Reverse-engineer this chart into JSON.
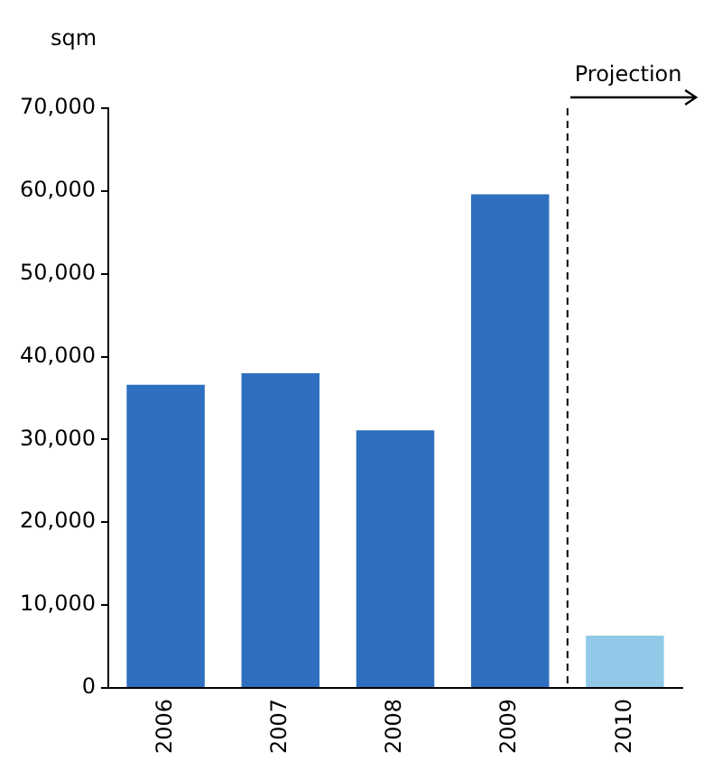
{
  "chart_data": {
    "type": "bar",
    "ylabel": "sqm",
    "categories": [
      "2006",
      "2007",
      "2008",
      "2009",
      "2010"
    ],
    "values": [
      36600,
      38000,
      31100,
      59600,
      6300
    ],
    "colors": [
      "#2e6fbf",
      "#2e6fbf",
      "#2e6fbf",
      "#2e6fbf",
      "#92c9e8"
    ],
    "ylim": [
      0,
      70000
    ],
    "yticks": [
      {
        "value": 0,
        "label": "0"
      },
      {
        "value": 10000,
        "label": "10,000"
      },
      {
        "value": 20000,
        "label": "20,000"
      },
      {
        "value": 30000,
        "label": "30,000"
      },
      {
        "value": 40000,
        "label": "40,000"
      },
      {
        "value": 50000,
        "label": "50,000"
      },
      {
        "value": 60000,
        "label": "60,000"
      },
      {
        "value": 70000,
        "label": "70,000"
      }
    ],
    "grid": false,
    "annotations": [
      "Projection"
    ]
  }
}
